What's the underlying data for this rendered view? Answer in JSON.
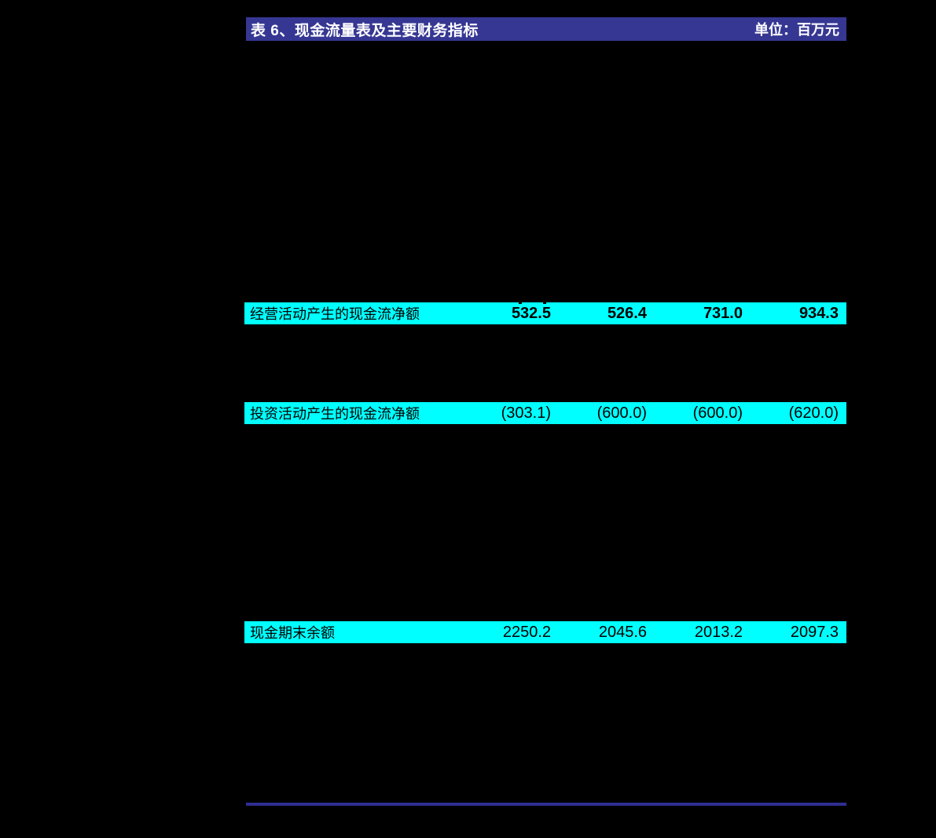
{
  "table_header": {
    "title": "表 6、现金流量表及主要财务指标",
    "unit": "单位：百万元",
    "bar_color": "#363793",
    "text_color": "#FFFFFF"
  },
  "highlight_rows": [
    {
      "label": "经营活动产生的现金流净额",
      "values": [
        "532.5",
        "526.4",
        "731.0",
        "934.3"
      ]
    },
    {
      "label": "投资活动产生的现金流净额",
      "values": [
        "(303.1)",
        "(600.0)",
        "(600.0)",
        "(620.0)"
      ]
    },
    {
      "label": "现金期末余额",
      "values": [
        "2250.2",
        "2045.6",
        "2013.2",
        "2097.3"
      ]
    }
  ],
  "colors": {
    "page_background": "#000000",
    "row_highlight": "#00FFFF",
    "divider": "#2E2E90"
  }
}
